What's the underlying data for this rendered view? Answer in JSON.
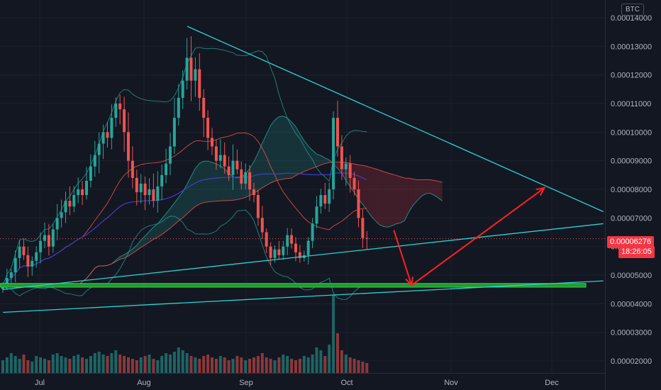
{
  "header": {
    "currency": "BTC"
  },
  "colors": {
    "background": "#131722",
    "up": "#26a69a",
    "down": "#ef5350",
    "trendline": "#2fd0d0",
    "support_zone": "#1f9b2e",
    "arrow": "#ff2020",
    "ichimoku_cloud_bear": "#f2364533",
    "ichimoku_cloud_bull": "#26a69a33",
    "moving_average_long": "#3f3fc8",
    "bollinger_band": "#26a69a"
  },
  "chart_data": {
    "type": "candlestick",
    "pair_currency": "BTC",
    "x_tick_labels": [
      "Jul",
      "Aug",
      "Sep",
      "Oct",
      "Nov",
      "Dec"
    ],
    "y_tick_labels": [
      "0.00014000",
      "0.00013000",
      "0.00012000",
      "0.00011000",
      "0.00010000",
      "0.00009000",
      "0.00008000",
      "0.00007000",
      "0.00006000",
      "0.00005000",
      "0.00004000",
      "0.00003000",
      "0.00002000"
    ],
    "y_ticks": [
      0.00014,
      0.00013,
      0.00012,
      0.00011,
      0.0001,
      9e-05,
      8e-05,
      7e-05,
      6e-05,
      5e-05,
      4e-05,
      3e-05,
      2e-05
    ],
    "ylim": [
      1.58e-05,
      0.0001462
    ],
    "current_price": "0.00006276",
    "current_price_value": 6.276e-05,
    "countdown": "18:26:05",
    "closes": [
      4.65e-05,
      4.9e-05,
      5.1e-05,
      5.6e-05,
      6e-05,
      5.7e-05,
      5.3e-05,
      5.5e-05,
      5.8e-05,
      6.2e-05,
      6.4e-05,
      6e-05,
      6.6e-05,
      7e-05,
      7.2e-05,
      7.6e-05,
      7.4e-05,
      7.8e-05,
      8e-05,
      7.8e-05,
      8.3e-05,
      8.8e-05,
      9.2e-05,
      9.6e-05,
      0.0001,
      9.8e-05,
      0.000105,
      0.00011,
      0.000108,
      0.0001,
      9e-05,
      8.4e-05,
      7.9e-05,
      8.2e-05,
      7.8e-05,
      8e-05,
      7.6e-05,
      8.1e-05,
      8.5e-05,
      8.9e-05,
      9.5e-05,
      0.000105,
      0.000112,
      0.000118,
      0.000126,
      0.000118,
      0.000122,
      0.000112,
      0.000105,
      9.8e-05,
      9.5e-05,
      9e-05,
      9.2e-05,
      8.8e-05,
      8.5e-05,
      9e-05,
      8.7e-05,
      8.2e-05,
      8.6e-05,
      8e-05,
      7.8e-05,
      7e-05,
      6.5e-05,
      6e-05,
      5.6e-05,
      5.9e-05,
      5.7e-05,
      6e-05,
      6.4e-05,
      6.1e-05,
      5.8e-05,
      5.6e-05,
      5.7e-05,
      6.2e-05,
      6.8e-05,
      7.4e-05,
      7.8e-05,
      7.5e-05,
      8e-05,
      0.000105,
      9.5e-05,
      8.7e-05,
      8.9e-05,
      8.4e-05,
      8e-05,
      7e-05,
      6.3e-05,
      6.28e-05
    ],
    "volumes": [
      9,
      11,
      14,
      12,
      10,
      13,
      9,
      8,
      12,
      11,
      10,
      9,
      13,
      14,
      12,
      11,
      10,
      12,
      13,
      11,
      10,
      12,
      14,
      15,
      13,
      12,
      14,
      16,
      13,
      12,
      11,
      10,
      9,
      11,
      12,
      13,
      10,
      9,
      12,
      14,
      13,
      15,
      18,
      16,
      14,
      12,
      11,
      10,
      12,
      13,
      11,
      10,
      12,
      11,
      9,
      10,
      12,
      11,
      9,
      10,
      11,
      12,
      14,
      11,
      10,
      9,
      11,
      13,
      12,
      10,
      9,
      10,
      12,
      11,
      13,
      18,
      16,
      12,
      20,
      55,
      28,
      16,
      13,
      11,
      10,
      9,
      8,
      7
    ],
    "annotations": {
      "trendlines": [
        {
          "name": "descending-resistance",
          "from": [
            12.5,
            0.000137
          ],
          "to": [
            40.9,
            7.22e-05
          ]
        },
        {
          "name": "ascending-support-upper",
          "from": [
            0,
            4.5e-05
          ],
          "to": [
            40.9,
            6.8e-05
          ]
        },
        {
          "name": "ascending-support-lower",
          "from": [
            0,
            3.7e-05
          ],
          "to": [
            40.9,
            4.8e-05
          ]
        }
      ],
      "support_zone": {
        "low": 4.58e-05,
        "high": 4.71e-05
      },
      "arrows": [
        {
          "from": [
            26.7,
            6.57e-05
          ],
          "to": [
            27.9,
            4.65e-05
          ]
        },
        {
          "from": [
            27.9,
            4.65e-05
          ],
          "to": [
            36.9,
            8.05e-05
          ]
        }
      ]
    }
  }
}
